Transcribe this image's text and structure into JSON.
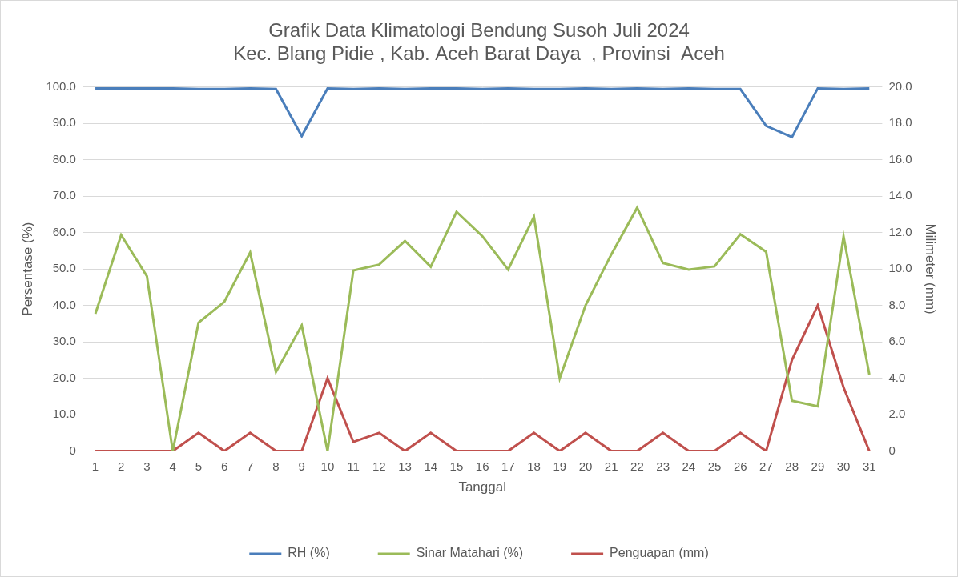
{
  "chart_data": {
    "type": "line",
    "title": [
      "Grafik Data Klimatologi Bendung Susoh Juli 2024",
      "Kec. Blang Pidie , Kab. Aceh Barat Daya  , Provinsi  Aceh"
    ],
    "x_label": "Tanggal",
    "y_label": "Persentase (%)",
    "y2_label": "Milimeter (mm)",
    "categories": [
      "1",
      "2",
      "3",
      "4",
      "5",
      "6",
      "7",
      "8",
      "9",
      "10",
      "11",
      "12",
      "13",
      "14",
      "15",
      "16",
      "17",
      "18",
      "19",
      "20",
      "21",
      "22",
      "23",
      "24",
      "25",
      "26",
      "27",
      "28",
      "29",
      "30",
      "31"
    ],
    "series": [
      {
        "name": "RH (%)",
        "color": "#4a7ebb",
        "axis": "y",
        "values": [
          99.6,
          99.6,
          99.6,
          99.6,
          99.4,
          99.4,
          99.6,
          99.4,
          86.5,
          99.6,
          99.4,
          99.6,
          99.4,
          99.6,
          99.6,
          99.4,
          99.6,
          99.4,
          99.4,
          99.6,
          99.4,
          99.6,
          99.4,
          99.6,
          99.4,
          99.4,
          89.3,
          86.2,
          99.6,
          99.4,
          99.6
        ]
      },
      {
        "name": "Sinar Matahari (%)",
        "color": "#9bbb59",
        "axis": "y",
        "values": [
          37.7,
          59.3,
          48.0,
          0,
          35.3,
          41.0,
          54.5,
          21.7,
          34.5,
          0,
          49.6,
          51.2,
          57.7,
          50.6,
          65.7,
          59.0,
          49.8,
          64.3,
          20.0,
          40.0,
          54.0,
          66.8,
          51.6,
          49.8,
          50.7,
          59.5,
          54.7,
          13.8,
          12.3,
          58.9,
          21.0
        ]
      },
      {
        "name": "Penguapan (mm)",
        "color": "#c0504d",
        "axis": "y2",
        "values": [
          0,
          0,
          0,
          0,
          1,
          0,
          1,
          0,
          0,
          4,
          0.5,
          1,
          0,
          1,
          0,
          0,
          0,
          1,
          0,
          1,
          0,
          0,
          1,
          0,
          0,
          1,
          0,
          5,
          8,
          3.5,
          0
        ]
      }
    ],
    "ylim": [
      0,
      100
    ],
    "yticks": [
      0,
      {
        "value": 10,
        "label": "10.0"
      },
      {
        "value": 20,
        "label": "20.0"
      },
      {
        "value": 30,
        "label": "30.0"
      },
      {
        "value": 40,
        "label": "40.0"
      },
      {
        "value": 50,
        "label": "50.0"
      },
      {
        "value": 60,
        "label": "60.0"
      },
      {
        "value": 70,
        "label": "70.0"
      },
      {
        "value": 80,
        "label": "80.0"
      },
      {
        "value": 90,
        "label": "90.0"
      },
      {
        "value": 100,
        "label": "100.0"
      }
    ],
    "y2lim": [
      0,
      20
    ],
    "y2ticks": [
      0,
      {
        "value": 2,
        "label": "2.0"
      },
      {
        "value": 4,
        "label": "4.0"
      },
      {
        "value": 6,
        "label": "6.0"
      },
      {
        "value": 8,
        "label": "8.0"
      },
      {
        "value": 10,
        "label": "10.0"
      },
      {
        "value": 12,
        "label": "12.0"
      },
      {
        "value": 14,
        "label": "14.0"
      },
      {
        "value": 16,
        "label": "16.0"
      },
      {
        "value": 18,
        "label": "18.0"
      },
      {
        "value": 20,
        "label": "20.0"
      }
    ],
    "grid": true,
    "legend": "bottom"
  }
}
